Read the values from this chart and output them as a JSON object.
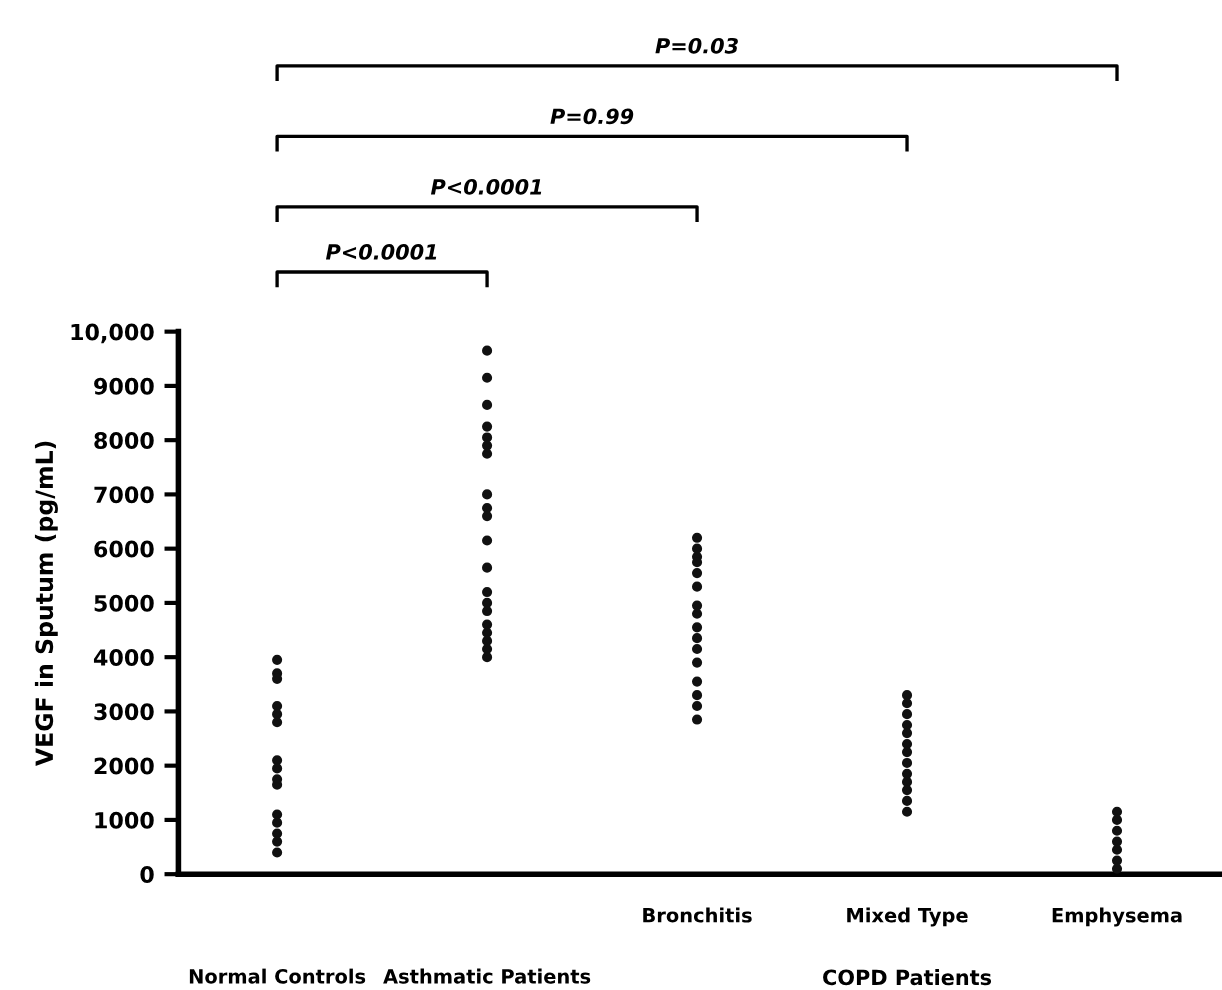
{
  "chart_data": {
    "type": "scatter",
    "categories": [
      "Normal Controls",
      "Asthmatic Patients",
      "Bronchitis",
      "Mixed Type",
      "Emphysema"
    ],
    "ylabel": "VEGF in Sputum (pg/mL)",
    "ylim": [
      0,
      10000
    ],
    "yticks": [
      0,
      1000,
      2000,
      3000,
      4000,
      5000,
      6000,
      7000,
      8000,
      9000,
      {
        "value": 10000,
        "label": "10,000"
      }
    ],
    "marker": "circle",
    "series": [
      {
        "color": "#111111",
        "x": [
          "Normal Controls",
          "Normal Controls",
          "Normal Controls",
          "Normal Controls",
          "Normal Controls",
          "Normal Controls",
          "Normal Controls",
          "Normal Controls",
          "Normal Controls",
          "Normal Controls",
          "Normal Controls",
          "Normal Controls",
          "Normal Controls",
          "Normal Controls",
          "Normal Controls",
          "Asthmatic Patients",
          "Asthmatic Patients",
          "Asthmatic Patients",
          "Asthmatic Patients",
          "Asthmatic Patients",
          "Asthmatic Patients",
          "Asthmatic Patients",
          "Asthmatic Patients",
          "Asthmatic Patients",
          "Asthmatic Patients",
          "Asthmatic Patients",
          "Asthmatic Patients",
          "Asthmatic Patients",
          "Asthmatic Patients",
          "Asthmatic Patients",
          "Asthmatic Patients",
          "Asthmatic Patients",
          "Asthmatic Patients",
          "Asthmatic Patients",
          "Asthmatic Patients",
          "Bronchitis",
          "Bronchitis",
          "Bronchitis",
          "Bronchitis",
          "Bronchitis",
          "Bronchitis",
          "Bronchitis",
          "Bronchitis",
          "Bronchitis",
          "Bronchitis",
          "Bronchitis",
          "Bronchitis",
          "Bronchitis",
          "Bronchitis",
          "Bronchitis",
          "Bronchitis",
          "Mixed Type",
          "Mixed Type",
          "Mixed Type",
          "Mixed Type",
          "Mixed Type",
          "Mixed Type",
          "Mixed Type",
          "Mixed Type",
          "Mixed Type",
          "Mixed Type",
          "Mixed Type",
          "Mixed Type",
          "Mixed Type",
          "Emphysema",
          "Emphysema",
          "Emphysema",
          "Emphysema",
          "Emphysema",
          "Emphysema",
          "Emphysema"
        ],
        "values": [
          3950,
          3700,
          3600,
          3100,
          2950,
          2800,
          2100,
          1950,
          1750,
          1650,
          1100,
          950,
          750,
          600,
          400,
          9650,
          9150,
          8650,
          8250,
          8050,
          7900,
          7750,
          7000,
          6750,
          6600,
          6150,
          5650,
          5200,
          5000,
          4850,
          4600,
          4450,
          4300,
          4150,
          4000,
          6200,
          6000,
          5850,
          5750,
          5550,
          5300,
          4950,
          4800,
          4550,
          4350,
          4150,
          3900,
          3550,
          3300,
          3100,
          2850,
          3300,
          3150,
          2950,
          2750,
          2600,
          2400,
          2250,
          2050,
          1850,
          1700,
          1550,
          1350,
          1150,
          1150,
          1000,
          800,
          600,
          450,
          250,
          100
        ]
      }
    ],
    "annotations": [
      "P<0.0001",
      "P<0.0001",
      "P=0.99",
      "P=0.03",
      "COPD Patients"
    ]
  }
}
